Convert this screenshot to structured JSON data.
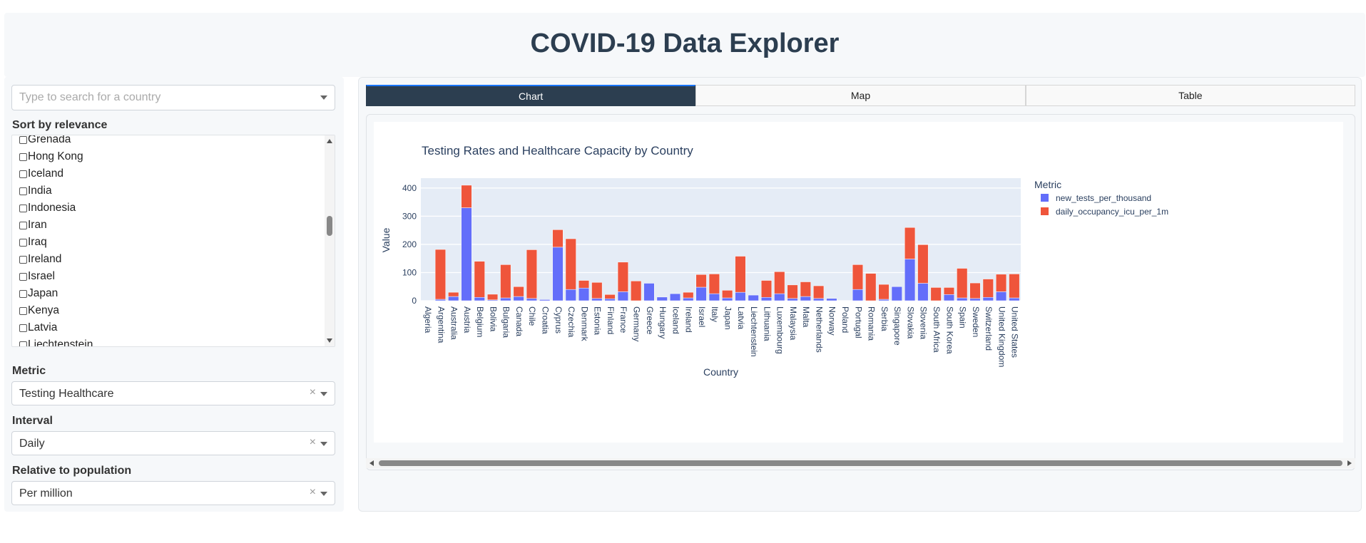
{
  "header": {
    "title": "COVID-19 Data Explorer"
  },
  "sidebar": {
    "search": {
      "placeholder": "Type to search for a country"
    },
    "sort_label": "Sort by relevance",
    "countries": [
      "Grenada",
      "Hong Kong",
      "Iceland",
      "India",
      "Indonesia",
      "Iran",
      "Iraq",
      "Ireland",
      "Israel",
      "Japan",
      "Kenya",
      "Latvia",
      "Liechtenstein"
    ],
    "metric": {
      "label": "Metric",
      "value": "Testing Healthcare"
    },
    "interval": {
      "label": "Interval",
      "value": "Daily"
    },
    "relative": {
      "label": "Relative to population",
      "value": "Per million"
    },
    "clear_symbol": "×"
  },
  "tabs": [
    {
      "label": "Chart",
      "active": true
    },
    {
      "label": "Map",
      "active": false
    },
    {
      "label": "Table",
      "active": false
    }
  ],
  "colors": {
    "series1": "#636efa",
    "series2": "#ef553b",
    "plot_bg": "#e5ecf6",
    "header_text": "#2c3e50",
    "active_tab": "#2c3e50"
  },
  "chart_data": {
    "type": "bar",
    "stacked": true,
    "title": "Testing Rates and Healthcare Capacity by Country",
    "xlabel": "Country",
    "ylabel": "Value",
    "legend_title": "Metric",
    "legend_position": "right",
    "ylim": [
      0,
      430
    ],
    "yticks": [
      0,
      100,
      200,
      300,
      400
    ],
    "categories": [
      "Algeria",
      "Argentina",
      "Australia",
      "Austria",
      "Belgium",
      "Bolivia",
      "Bulgaria",
      "Canada",
      "Chile",
      "Croatia",
      "Cyprus",
      "Czechia",
      "Denmark",
      "Estonia",
      "Finland",
      "France",
      "Germany",
      "Greece",
      "Hungary",
      "Iceland",
      "Ireland",
      "Israel",
      "Italy",
      "Japan",
      "Latvia",
      "Liechtenstein",
      "Lithuania",
      "Luxembourg",
      "Malaysia",
      "Malta",
      "Netherlands",
      "Norway",
      "Poland",
      "Portugal",
      "Romania",
      "Serbia",
      "Singapore",
      "Slovakia",
      "Slovenia",
      "South Africa",
      "South Korea",
      "Spain",
      "Sweden",
      "Switzerland",
      "United Kingdom",
      "United States"
    ],
    "series": [
      {
        "name": "new_tests_per_thousand",
        "values": [
          0,
          5,
          15,
          330,
          12,
          3,
          10,
          15,
          8,
          4,
          190,
          40,
          45,
          8,
          7,
          32,
          0,
          62,
          13,
          25,
          10,
          48,
          25,
          10,
          30,
          20,
          12,
          25,
          8,
          15,
          8,
          8,
          0,
          40,
          0,
          5,
          50,
          148,
          62,
          0,
          22,
          10,
          8,
          12,
          32,
          10
        ]
      },
      {
        "name": "daily_occupancy_icu_per_1m",
        "values": [
          0,
          177,
          15,
          80,
          128,
          20,
          118,
          35,
          173,
          0,
          62,
          180,
          27,
          57,
          15,
          105,
          70,
          0,
          0,
          0,
          20,
          45,
          70,
          27,
          128,
          0,
          60,
          78,
          48,
          52,
          45,
          0,
          0,
          88,
          97,
          53,
          0,
          112,
          137,
          47,
          25,
          105,
          55,
          65,
          62,
          85
        ]
      }
    ]
  }
}
